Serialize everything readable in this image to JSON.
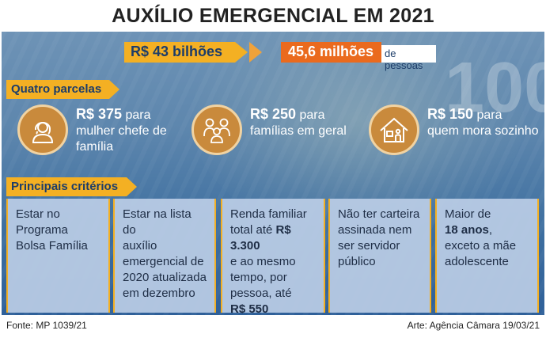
{
  "title": "AUXÍLIO EMERGENCIAL EM 2021",
  "totals": {
    "amount": "R$ 43 bilhões",
    "people_value": "45,6 milhões",
    "people_unit": "de pessoas"
  },
  "installments_section": {
    "label": "Quatro parcelas",
    "items": [
      {
        "icon": "woman-icon",
        "value": "R$ 375",
        "line1": " para",
        "line2": "mulher chefe de",
        "line3": "família"
      },
      {
        "icon": "family-icon",
        "value": "R$ 250",
        "line1": " para",
        "line2": "famílias em geral",
        "line3": ""
      },
      {
        "icon": "house-icon",
        "value": "R$ 150",
        "line1": " para",
        "line2": "quem mora sozinho",
        "line3": ""
      }
    ]
  },
  "criteria_section": {
    "label": "Principais critérios",
    "items": [
      {
        "l1": "Estar no",
        "l2": "Programa",
        "l3": "Bolsa Família"
      },
      {
        "l1": "Estar na lista do",
        "l2": "auxílio",
        "l3": "emergencial de",
        "l4": "2020 atualizada",
        "l5": "em dezembro"
      },
      {
        "l1": "Renda familiar",
        "l2a": "total até ",
        "l2b": "R$ 3.300",
        "l3": "e ao mesmo",
        "l4": "tempo, por",
        "l5": "pessoa, até",
        "l6": "R$ 550"
      },
      {
        "l1": "Não ter carteira",
        "l2": "assinada nem",
        "l3": "ser servidor",
        "l4": "público"
      },
      {
        "l1": "Maior de",
        "l2a": "18 anos",
        "l2b": ",",
        "l3": "exceto a mãe",
        "l4": "adolescente"
      }
    ]
  },
  "footer": {
    "source": "Fonte: MP 1039/21",
    "credit": "Arte: Agência Câmara 19/03/21"
  },
  "colors": {
    "yellow": "#f4b023",
    "orange": "#ea6a1e",
    "navy": "#1d3d69",
    "icon_bg": "#c98a3c"
  }
}
